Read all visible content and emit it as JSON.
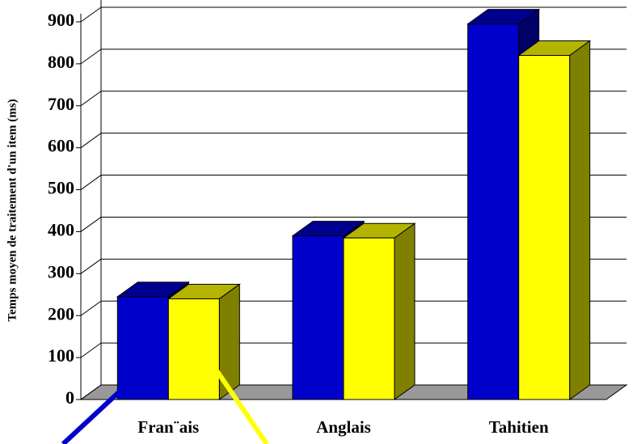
{
  "chart_data": {
    "type": "bar3d",
    "y_label": "Temps moyen de traitement d'un item (ms)",
    "categories": [
      "Fran¨ais",
      "Anglais",
      "Tahitien"
    ],
    "series": [
      {
        "color": "#0000cc",
        "values": [
          245,
          390,
          895
        ]
      },
      {
        "color": "#ffff00",
        "values": [
          240,
          385,
          820
        ]
      }
    ],
    "ylim": [
      0,
      900
    ],
    "yticks": [
      0,
      100,
      200,
      300,
      400,
      500,
      600,
      700,
      800,
      900
    ],
    "grid": true
  }
}
